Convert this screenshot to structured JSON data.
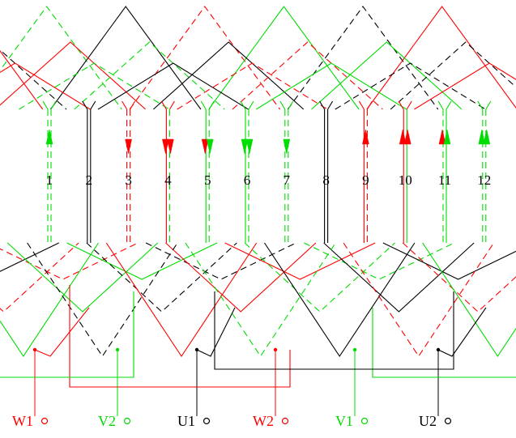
{
  "colors": {
    "U": "#000000",
    "V": "#00dd00",
    "W": "#ff0000",
    "background": "#ffffff"
  },
  "slots": [
    {
      "label": "1",
      "phase": "V",
      "arrows": [
        {
          "dir": "up",
          "color": "V"
        }
      ],
      "top_solid": false,
      "bot_solid": false
    },
    {
      "label": "2",
      "phase": "U",
      "arrows": [],
      "top_solid": true,
      "bot_solid": true
    },
    {
      "label": "3",
      "phase": "W",
      "arrows": [
        {
          "dir": "down",
          "color": "W"
        }
      ],
      "top_solid": false,
      "bot_solid": false
    },
    {
      "label": "4",
      "phase": "W",
      "arrows": [
        {
          "dir": "down",
          "color": "W"
        },
        {
          "dir": "down",
          "color": "W"
        }
      ],
      "top_solid": true,
      "bot_solid": false
    },
    {
      "label": "5",
      "phase": "V",
      "arrows": [
        {
          "dir": "down",
          "color": "W"
        },
        {
          "dir": "down",
          "color": "V"
        }
      ],
      "top_solid": true,
      "bot_solid": false
    },
    {
      "label": "6",
      "phase": "V",
      "arrows": [
        {
          "dir": "down",
          "color": "V"
        },
        {
          "dir": "down",
          "color": "V"
        }
      ],
      "top_solid": true,
      "bot_solid": false
    },
    {
      "label": "7",
      "phase": "V",
      "arrows": [
        {
          "dir": "down",
          "color": "V"
        }
      ],
      "top_solid": false,
      "bot_solid": false
    },
    {
      "label": "8",
      "phase": "U",
      "arrows": [],
      "top_solid": true,
      "bot_solid": true
    },
    {
      "label": "9",
      "phase": "W",
      "arrows": [
        {
          "dir": "up",
          "color": "W"
        }
      ],
      "top_solid": true,
      "bot_solid": false
    },
    {
      "label": "10",
      "phase": "W",
      "arrows": [
        {
          "dir": "up",
          "color": "W"
        },
        {
          "dir": "up",
          "color": "W"
        }
      ],
      "top_solid": true,
      "bot_solid": true
    },
    {
      "label": "11",
      "phase": "V",
      "arrows": [
        {
          "dir": "up",
          "color": "W"
        },
        {
          "dir": "up",
          "color": "V"
        }
      ],
      "top_solid": false,
      "bot_solid": true
    },
    {
      "label": "12",
      "phase": "V",
      "arrows": [
        {
          "dir": "up",
          "color": "V"
        },
        {
          "dir": "up",
          "color": "V"
        }
      ],
      "top_solid": false,
      "bot_solid": false
    }
  ],
  "terminals": [
    {
      "label": "W1",
      "phase": "W"
    },
    {
      "label": "V2",
      "phase": "V"
    },
    {
      "label": "U1",
      "phase": "U"
    },
    {
      "label": "W2",
      "phase": "W"
    },
    {
      "label": "V1",
      "phase": "V"
    },
    {
      "label": "U2",
      "phase": "U"
    }
  ]
}
